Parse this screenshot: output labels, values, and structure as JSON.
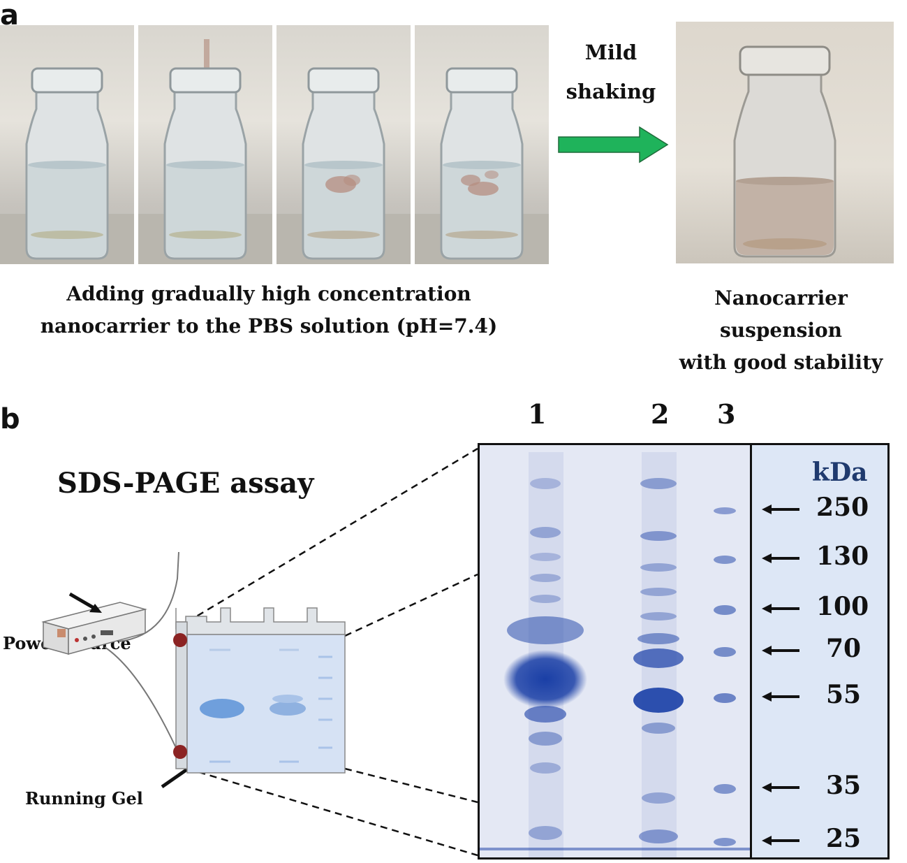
{
  "panel_a": {
    "letter": "a",
    "arrow_label_line1": "Mild",
    "arrow_label_line2": "shaking",
    "arrow_color": "#1fb35b",
    "caption_left_line1": "Adding gradually high concentration",
    "caption_left_line2": "nanocarrier to the PBS solution (pH=7.4)",
    "caption_right_line1": "Nanocarrier suspension",
    "caption_right_line2": "with good stability"
  },
  "panel_b": {
    "letter": "b",
    "assay_title": "SDS-PAGE assay",
    "power_source_label": "Power Source",
    "running_gel_label": "Running Gel",
    "lane_numbers": [
      "1",
      "2",
      "3"
    ],
    "kda_label": "kDa",
    "marker_weights": [
      "250",
      "130",
      "100",
      "70",
      "55",
      "35",
      "25"
    ],
    "gel_stain_color": "#1a3fa6"
  }
}
